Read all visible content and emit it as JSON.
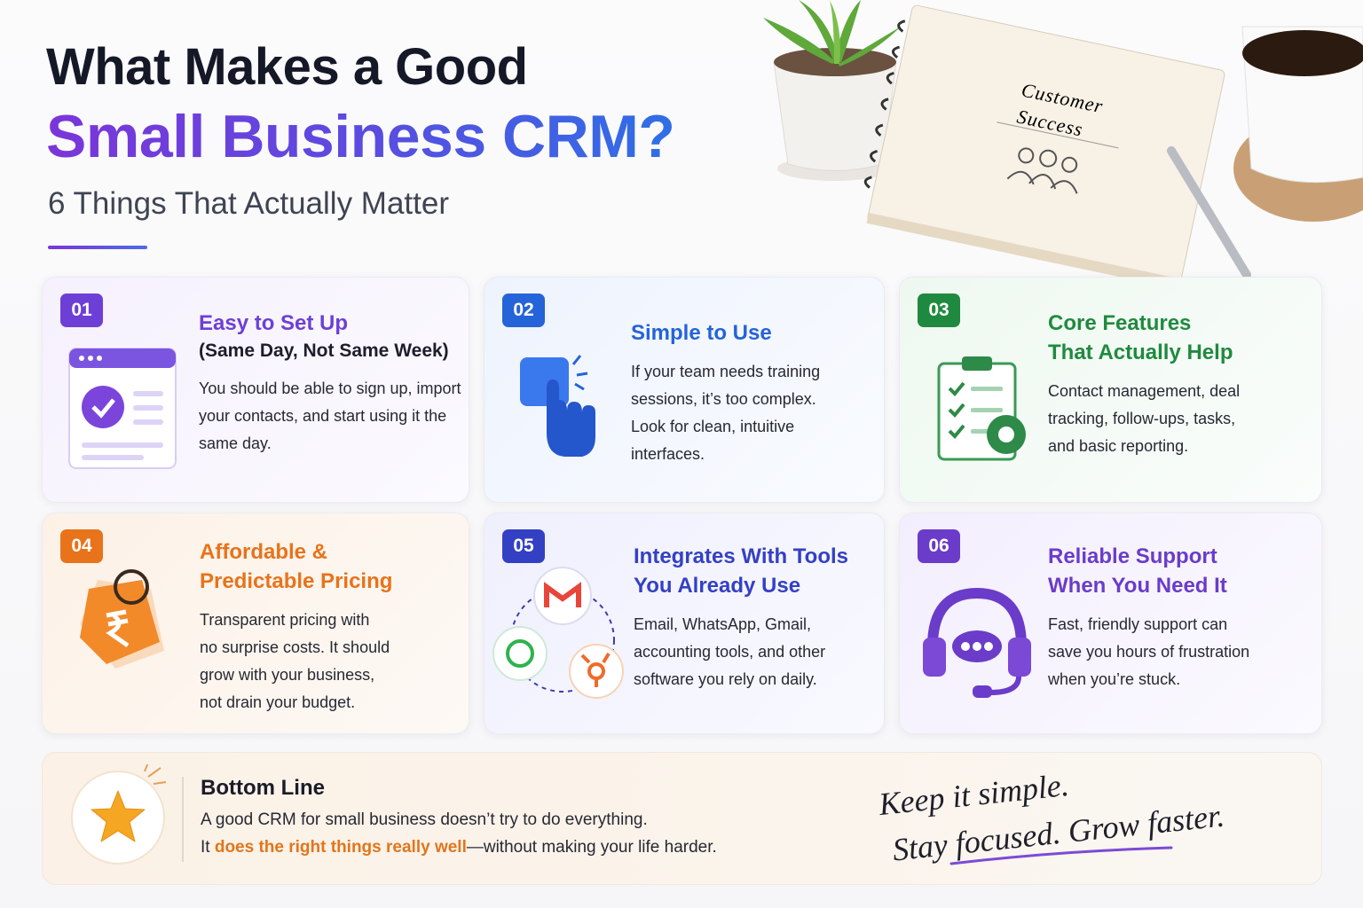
{
  "header": {
    "title_line1": "What Makes a Good",
    "title_line2": "Small Business CRM?",
    "subtitle": "6 Things That Actually Matter"
  },
  "notebook": {
    "lines": [
      "Customer",
      "Success"
    ]
  },
  "cards": [
    {
      "number": "01",
      "title": [
        "Easy to Set Up"
      ],
      "subtitle": "(Same Day, Not Same Week)",
      "body": [
        "You should be able to sign up, import",
        "your contacts, and start using it the",
        "same day."
      ]
    },
    {
      "number": "02",
      "title": [
        "Simple to Use"
      ],
      "body": [
        "If your team needs training",
        "sessions, it’s too complex.",
        "Look for clean, intuitive",
        "interfaces."
      ]
    },
    {
      "number": "03",
      "title": [
        "Core Features",
        "That Actually Help"
      ],
      "body": [
        "Contact management, deal",
        "tracking, follow-ups, tasks,",
        "and basic reporting."
      ]
    },
    {
      "number": "04",
      "title": [
        "Affordable &",
        "Predictable Pricing"
      ],
      "body": [
        "Transparent pricing with",
        "no surprise costs. It should",
        "grow with your business,",
        "not drain your budget."
      ]
    },
    {
      "number": "05",
      "title": [
        "Integrates With Tools",
        "You Already Use"
      ],
      "body": [
        "Email, WhatsApp, Gmail,",
        "accounting tools, and other",
        "software you rely on daily."
      ]
    },
    {
      "number": "06",
      "title": [
        "Reliable Support",
        "When You Need It"
      ],
      "body": [
        "Fast, friendly support can",
        "save you hours of frustration",
        "when you’re stuck."
      ]
    }
  ],
  "bottom": {
    "title": "Bottom Line",
    "line1": "A good CRM for small business doesn’t try to do everything.",
    "line2_start": "It ",
    "line2_highlight": "does the right things really well",
    "line2_end": "—without making your life harder.",
    "tagline": [
      "Keep it simple.",
      "Stay focused. Grow faster."
    ]
  }
}
